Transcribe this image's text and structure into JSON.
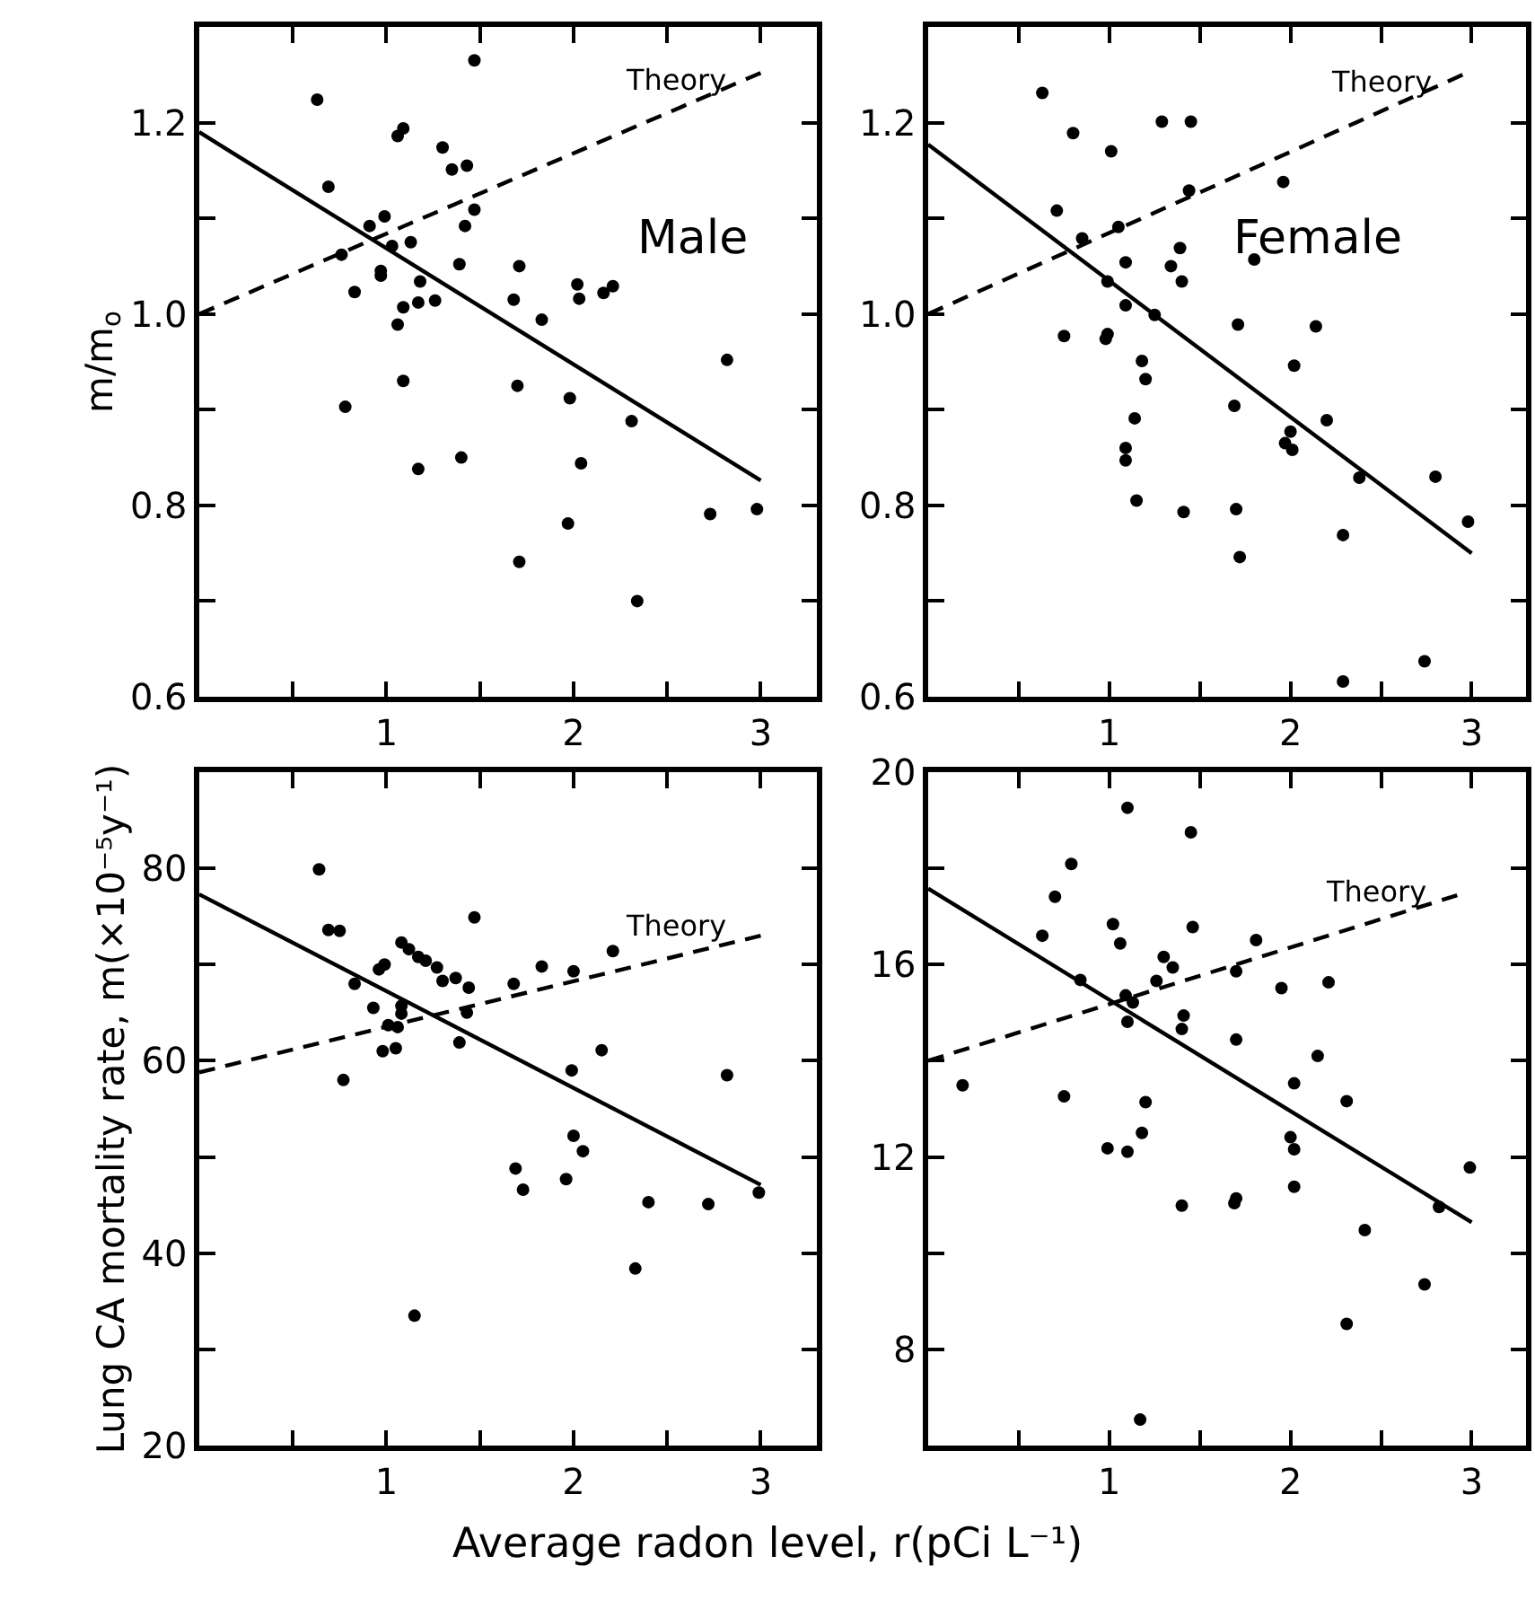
{
  "chart_data": [
    {
      "type": "scatter",
      "ylabel": "m/m$_{o}$",
      "annotations": [
        "Male",
        {
          "text": "Theory",
          "x": 2.55,
          "y": 1.214
        }
      ],
      "xlim": [
        0,
        3.3
      ],
      "xticks": [
        {
          "value": 0.5,
          "label": null
        },
        1,
        {
          "value": 1.5,
          "label": null
        },
        2,
        {
          "value": 2.5,
          "label": null
        },
        3
      ],
      "ylim": [
        0.6,
        1.3
      ],
      "yticks": [
        0.6,
        {
          "value": 0.7,
          "label": null
        },
        0.8,
        {
          "value": 0.9,
          "label": null
        },
        {
          "value": 1.0,
          "label": "1.0"
        },
        {
          "value": 1.1,
          "label": null
        },
        1.2
      ],
      "marker": "circle",
      "series": [
        {
          "color": "#000000",
          "x": [
            0.63,
            1.47,
            0.69,
            1.06,
            1.09,
            1.3,
            1.35,
            1.43,
            1.47,
            1.42,
            0.99,
            0.91,
            1.03,
            1.13,
            0.76,
            0.97,
            0.97,
            1.18,
            1.39,
            0.83,
            1.09,
            1.17,
            1.26,
            1.06,
            1.71,
            1.68,
            1.83,
            2.02,
            2.03,
            2.16,
            2.21,
            1.09,
            0.78,
            1.17,
            1.4,
            1.7,
            1.98,
            2.31,
            2.04,
            1.97,
            1.71,
            2.34,
            2.82,
            2.73,
            2.98
          ],
          "values": [
            1.224,
            1.265,
            1.133,
            1.186,
            1.194,
            1.174,
            1.151,
            1.155,
            1.109,
            1.092,
            1.102,
            1.092,
            1.071,
            1.075,
            1.062,
            1.045,
            1.04,
            1.034,
            1.052,
            1.023,
            1.007,
            1.012,
            1.014,
            0.989,
            1.05,
            1.015,
            0.994,
            1.031,
            1.016,
            1.022,
            1.029,
            0.93,
            0.903,
            0.838,
            0.85,
            0.925,
            0.912,
            0.888,
            0.844,
            0.781,
            0.741,
            0.7,
            0.952,
            0.791,
            0.796
          ]
        },
        {
          "type": "line",
          "color": "#000000",
          "marker": "none",
          "line_style": "solid",
          "x": [
            0,
            3.0
          ],
          "values": [
            1.19,
            0.826
          ]
        },
        {
          "type": "line",
          "color": "#000000",
          "marker": "none",
          "line_style": "dashed",
          "x": [
            0,
            3.0
          ],
          "values": [
            1.0,
            1.252
          ]
        }
      ]
    },
    {
      "type": "scatter",
      "annotations": [
        "Female",
        {
          "text": "Theory",
          "x": 2.5,
          "y": 1.212
        }
      ],
      "xlim": [
        0,
        3.3
      ],
      "xticks": [
        {
          "value": 0.5,
          "label": null
        },
        1,
        {
          "value": 1.5,
          "label": null
        },
        2,
        {
          "value": 2.5,
          "label": null
        },
        3
      ],
      "ylim": [
        0.6,
        1.3
      ],
      "yticks": [
        0.6,
        {
          "value": 0.7,
          "label": null
        },
        0.8,
        {
          "value": 0.9,
          "label": null
        },
        {
          "value": 1.0,
          "label": "1.0"
        },
        {
          "value": 1.1,
          "label": null
        },
        1.2
      ],
      "marker": "circle",
      "series": [
        {
          "color": "#000000",
          "x": [
            0.63,
            0.8,
            1.01,
            1.29,
            1.45,
            1.96,
            0.71,
            1.44,
            1.05,
            0.85,
            1.09,
            1.39,
            1.34,
            1.4,
            1.8,
            0.99,
            1.09,
            1.25,
            0.75,
            0.98,
            0.99,
            1.71,
            2.14,
            1.18,
            1.2,
            2.02,
            1.14,
            1.69,
            2.2,
            1.09,
            1.09,
            2.0,
            1.97,
            2.01,
            1.15,
            1.41,
            1.7,
            1.72,
            2.38,
            2.8,
            2.98,
            2.29,
            2.29,
            2.74
          ],
          "values": [
            1.231,
            1.189,
            1.17,
            1.201,
            1.201,
            1.138,
            1.108,
            1.129,
            1.091,
            1.079,
            1.054,
            1.069,
            1.05,
            1.034,
            1.057,
            1.034,
            1.009,
            0.999,
            0.977,
            0.974,
            0.979,
            0.989,
            0.987,
            0.951,
            0.932,
            0.946,
            0.891,
            0.904,
            0.889,
            0.86,
            0.847,
            0.877,
            0.865,
            0.858,
            0.805,
            0.793,
            0.796,
            0.746,
            0.829,
            0.83,
            0.783,
            0.769,
            0.616,
            0.637
          ]
        },
        {
          "type": "line",
          "color": "#000000",
          "marker": "none",
          "line_style": "solid",
          "x": [
            0,
            3.0
          ],
          "values": [
            1.177,
            0.75
          ]
        },
        {
          "type": "line",
          "color": "#000000",
          "marker": "none",
          "line_style": "dashed",
          "x": [
            0,
            2.95
          ],
          "values": [
            1.0,
            1.25
          ]
        }
      ]
    },
    {
      "type": "scatter",
      "ylabel": "Lung CA mortality rate, m(×10⁻⁵y⁻¹)",
      "xlabel": "Average radon level, r(pCi L⁻¹)",
      "annotations": [
        {
          "text": "Theory",
          "x": 2.55,
          "y": 70.9
        }
      ],
      "xlim": [
        0,
        3.3
      ],
      "xticks": [
        {
          "value": 0.5,
          "label": null
        },
        1,
        {
          "value": 1.5,
          "label": null
        },
        2,
        {
          "value": 2.5,
          "label": null
        },
        3
      ],
      "ylim": [
        20,
        90
      ],
      "yticks": [
        20,
        {
          "value": 30,
          "label": null
        },
        40,
        {
          "value": 50,
          "label": null
        },
        60,
        {
          "value": 70,
          "label": null
        },
        80
      ],
      "marker": "circle",
      "series": [
        {
          "color": "#000000",
          "x": [
            0.64,
            0.69,
            0.75,
            0.83,
            0.93,
            0.96,
            0.99,
            1.08,
            1.12,
            1.17,
            1.21,
            1.27,
            1.3,
            1.37,
            1.44,
            1.47,
            1.08,
            1.08,
            1.01,
            1.06,
            0.98,
            1.05,
            0.77,
            1.39,
            1.43,
            1.68,
            1.83,
            2.0,
            2.21,
            1.99,
            2.15,
            1.69,
            1.73,
            1.96,
            2.0,
            2.05,
            2.4,
            2.72,
            2.82,
            2.99,
            2.33,
            1.15
          ],
          "values": [
            79.9,
            73.6,
            73.5,
            68.0,
            65.5,
            69.5,
            70.0,
            72.3,
            71.6,
            70.8,
            70.4,
            69.7,
            68.3,
            68.6,
            67.6,
            74.9,
            65.7,
            64.9,
            63.7,
            63.5,
            61.0,
            61.3,
            58.0,
            61.9,
            65.0,
            68.0,
            69.8,
            69.3,
            71.4,
            59.0,
            61.1,
            48.8,
            46.6,
            47.7,
            52.2,
            50.6,
            45.3,
            45.1,
            58.5,
            46.3,
            38.4,
            33.5
          ]
        },
        {
          "type": "line",
          "color": "#000000",
          "marker": "none",
          "line_style": "solid",
          "x": [
            0,
            3.0
          ],
          "values": [
            77.3,
            47.1
          ]
        },
        {
          "type": "line",
          "color": "#000000",
          "marker": "none",
          "line_style": "dashed",
          "x": [
            0,
            3.0
          ],
          "values": [
            58.8,
            73.0
          ]
        }
      ]
    },
    {
      "type": "scatter",
      "annotations": [
        {
          "text": "Theory",
          "x": 2.47,
          "y": 16.91
        }
      ],
      "xlim": [
        0,
        3.3
      ],
      "xticks": [
        {
          "value": 0.5,
          "label": null
        },
        1,
        {
          "value": 1.5,
          "label": null
        },
        2,
        {
          "value": 2.5,
          "label": null
        },
        3
      ],
      "ylim": [
        6,
        20
      ],
      "yticks": [
        8,
        {
          "value": 10,
          "label": null
        },
        12,
        {
          "value": 14,
          "label": null
        },
        16,
        {
          "value": 18,
          "label": null
        },
        20
      ],
      "marker": "circle",
      "series": [
        {
          "color": "#000000",
          "x": [
            1.1,
            1.45,
            0.79,
            0.7,
            0.63,
            1.02,
            1.06,
            1.46,
            1.81,
            0.84,
            1.3,
            1.35,
            1.26,
            1.09,
            1.13,
            1.1,
            1.7,
            1.95,
            2.21,
            1.41,
            1.4,
            1.7,
            2.15,
            0.19,
            0.75,
            1.2,
            2.02,
            2.31,
            1.18,
            0.99,
            1.1,
            2.0,
            2.02,
            1.4,
            1.7,
            1.69,
            2.02,
            2.99,
            2.82,
            2.41,
            2.74,
            2.31,
            1.17
          ],
          "values": [
            19.26,
            18.75,
            18.09,
            17.41,
            16.6,
            16.84,
            16.44,
            16.78,
            16.51,
            15.68,
            16.16,
            15.94,
            15.66,
            15.36,
            15.21,
            14.81,
            15.86,
            15.51,
            15.63,
            14.94,
            14.66,
            14.44,
            14.1,
            13.49,
            13.26,
            13.14,
            13.53,
            13.16,
            12.5,
            12.18,
            12.11,
            12.41,
            12.16,
            10.99,
            11.14,
            11.04,
            11.38,
            11.78,
            10.96,
            10.48,
            9.35,
            8.53,
            6.54
          ]
        },
        {
          "type": "line",
          "color": "#000000",
          "marker": "none",
          "line_style": "solid",
          "x": [
            0,
            3.0
          ],
          "values": [
            17.58,
            10.64
          ]
        },
        {
          "type": "line",
          "color": "#000000",
          "marker": "none",
          "line_style": "dashed",
          "x": [
            0,
            2.92
          ],
          "values": [
            14.0,
            17.44
          ]
        }
      ]
    }
  ]
}
